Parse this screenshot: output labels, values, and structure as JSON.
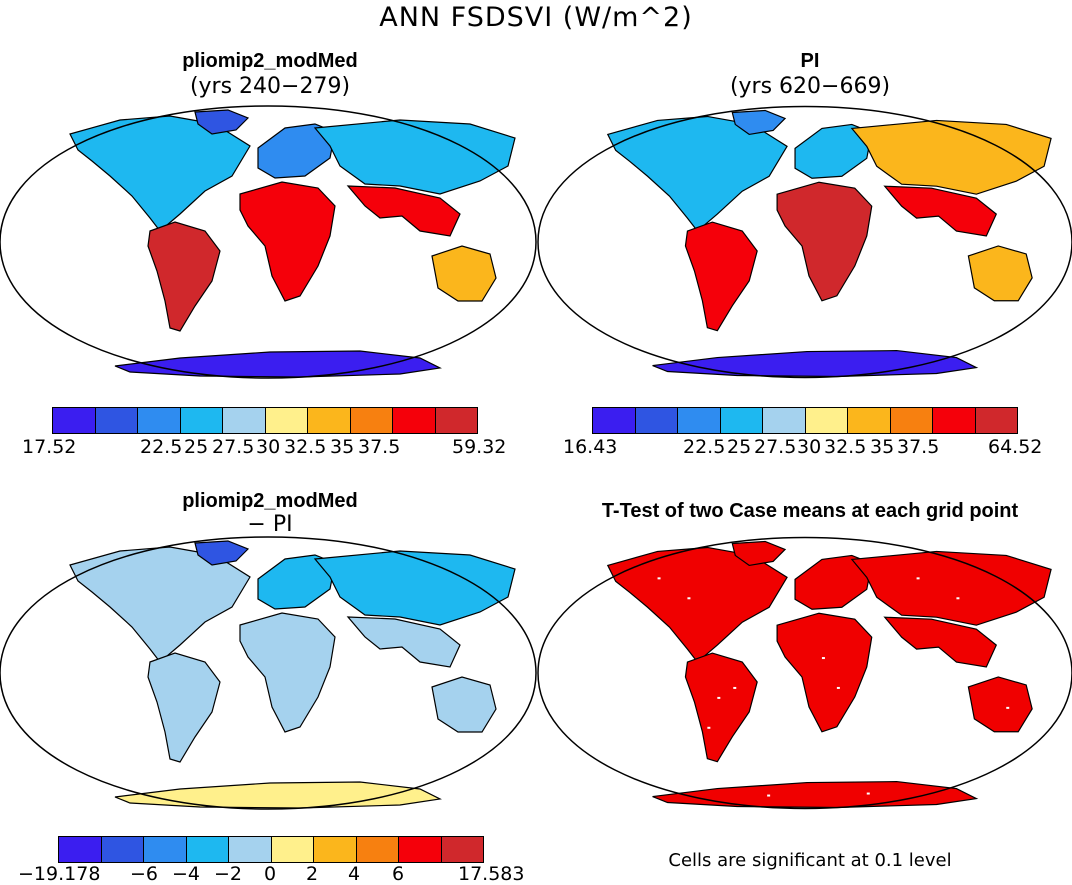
{
  "figure": {
    "title": "ANN FSDSVI (W/m^2)"
  },
  "colors": {
    "abs_scale": [
      "#3b1ef0",
      "#2f55e2",
      "#2f8cf0",
      "#1eb8f0",
      "#a5d2ee",
      "#fff08c",
      "#fbb61c",
      "#f78010",
      "#f5000a",
      "#d0282c"
    ],
    "diff_scale": [
      "#3b1ef0",
      "#2f55e2",
      "#2f8cf0",
      "#1eb8f0",
      "#a5d2ee",
      "#fff08c",
      "#fbb61c",
      "#f78010",
      "#f5000a",
      "#d0282c"
    ],
    "significance": "#f00000",
    "land_outline": "#000000"
  },
  "panels": [
    {
      "title": "pliomip2_modMed",
      "subtitle": "(yrs 240−279)",
      "colorbar_labels": [
        "17.52",
        "22.5",
        "25",
        "27.5",
        "30",
        "32.5",
        "35",
        "37.5",
        "59.32"
      ]
    },
    {
      "title": "PI",
      "subtitle": "(yrs 620−669)",
      "colorbar_labels": [
        "16.43",
        "22.5",
        "25",
        "27.5",
        "30",
        "32.5",
        "35",
        "37.5",
        "64.52"
      ]
    },
    {
      "title": "pliomip2_modMed",
      "subtitle": "− PI",
      "colorbar_labels": [
        "−19.178",
        "−6",
        "−4",
        "−2",
        "0",
        "2",
        "4",
        "6",
        "17.583"
      ]
    },
    {
      "title": "T-Test of two Case means at each grid point",
      "footnote": "Cells are significant at 0.1 level"
    }
  ],
  "regions": {
    "panel1": {
      "north_america": 3,
      "greenland": 1,
      "south_america": 9,
      "europe": 2,
      "africa": 8,
      "asia": 3,
      "south_asia": 8,
      "australia": 6,
      "antarctica": 0
    },
    "panel2": {
      "north_america": 3,
      "greenland": 2,
      "south_america": 8,
      "europe": 3,
      "africa": 9,
      "asia": 6,
      "south_asia": 8,
      "australia": 6,
      "antarctica": 0
    },
    "panel3": {
      "north_america": 4,
      "greenland": 1,
      "south_america": 4,
      "europe": 3,
      "africa": 4,
      "asia": 3,
      "south_asia": 4,
      "australia": 4,
      "antarctica": 5
    }
  }
}
